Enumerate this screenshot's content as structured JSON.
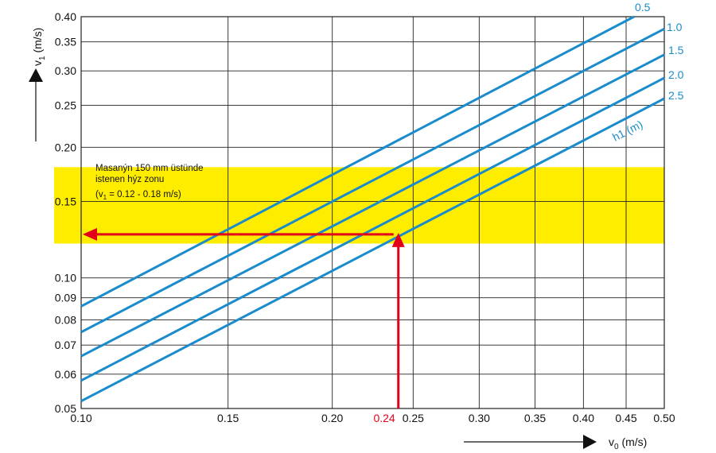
{
  "chart_data": {
    "type": "line",
    "title": "",
    "xlabel": "v0 (m/s)",
    "ylabel": "v1 (m/s)",
    "x_scale": "log",
    "y_scale": "log",
    "xlim": [
      0.1,
      0.5
    ],
    "ylim": [
      0.05,
      0.4
    ],
    "grid": true,
    "x_ticks": [
      {
        "value": 0.1,
        "label": "0.10"
      },
      {
        "value": 0.15,
        "label": "0.15"
      },
      {
        "value": 0.2,
        "label": "0.20"
      },
      {
        "value": 0.25,
        "label": "0.25"
      },
      {
        "value": 0.3,
        "label": "0.30"
      },
      {
        "value": 0.35,
        "label": "0.35"
      },
      {
        "value": 0.4,
        "label": "0.40"
      },
      {
        "value": 0.45,
        "label": "0.45"
      },
      {
        "value": 0.5,
        "label": "0.50"
      }
    ],
    "y_ticks": [
      {
        "value": 0.05,
        "label": "0.05"
      },
      {
        "value": 0.06,
        "label": "0.06"
      },
      {
        "value": 0.07,
        "label": "0.07"
      },
      {
        "value": 0.08,
        "label": "0.08"
      },
      {
        "value": 0.09,
        "label": "0.09"
      },
      {
        "value": 0.1,
        "label": "0.10"
      },
      {
        "value": 0.15,
        "label": "0.15"
      },
      {
        "value": 0.2,
        "label": "0.20"
      },
      {
        "value": 0.25,
        "label": "0.25"
      },
      {
        "value": 0.3,
        "label": "0.30"
      },
      {
        "value": 0.35,
        "label": "0.35"
      },
      {
        "value": 0.4,
        "label": "0.40"
      }
    ],
    "series_group_label": "h1 (m)",
    "series": [
      {
        "name": "0.5",
        "x": [
          0.1,
          0.46
        ],
        "y": [
          0.086,
          0.4
        ]
      },
      {
        "name": "1.0",
        "x": [
          0.1,
          0.5
        ],
        "y": [
          0.075,
          0.375
        ]
      },
      {
        "name": "1.5",
        "x": [
          0.1,
          0.5
        ],
        "y": [
          0.066,
          0.327
        ]
      },
      {
        "name": "2.0",
        "x": [
          0.1,
          0.5
        ],
        "y": [
          0.058,
          0.289
        ]
      },
      {
        "name": "2.5",
        "x": [
          0.1,
          0.5
        ],
        "y": [
          0.052,
          0.259
        ]
      }
    ],
    "band": {
      "y_range": [
        0.12,
        0.18
      ],
      "color": "#ffed00",
      "text_line1": "Masanýn 150 mm üstünde",
      "text_line2": "istenen hýz zonu",
      "text_line3_pre": "(v",
      "text_line3_sub": "1",
      "text_line3_post": " = 0.12 - 0.18 m/s)"
    },
    "highlight": {
      "x_value": 0.24,
      "label": "0.24",
      "y_value": 0.126,
      "color": "#e2001a"
    },
    "axis_titles": {
      "x_main": "v",
      "x_sub": "0",
      "x_unit": " (m/s)",
      "y_main": "v",
      "y_sub": "1",
      "y_unit": " (m/s)"
    },
    "colors": {
      "line": "#1a8ccc",
      "grid": "#222222",
      "band": "#ffed00",
      "arrow": "#e2001a"
    }
  }
}
